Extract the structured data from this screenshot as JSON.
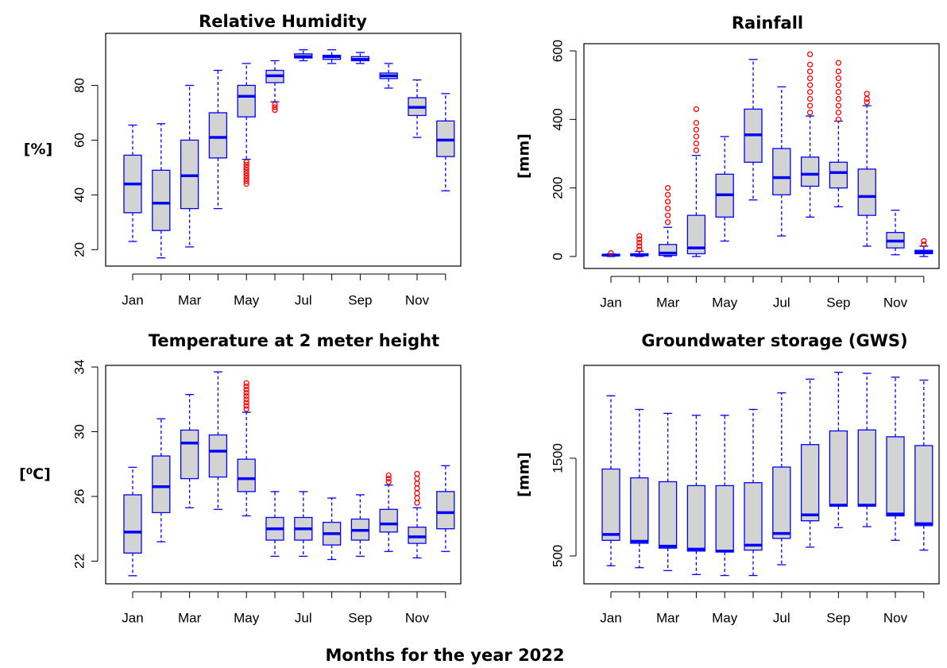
{
  "caption": "Months for the year 2022",
  "chart_data": [
    {
      "type": "box",
      "title": "Relative Humidity",
      "ylabel": "[%]",
      "categories": [
        "Jan",
        null,
        "Mar",
        null,
        "May",
        null,
        "Jul",
        null,
        "Sep",
        null,
        "Nov",
        null
      ],
      "color": "#0000ff",
      "fill": "#d3d3d3",
      "outlier_color": "#ff0000",
      "ylim": [
        14,
        99
      ],
      "yticks": [
        20,
        40,
        60,
        80
      ],
      "boxes": [
        {
          "min": 23,
          "q1": 33.5,
          "median": 44,
          "q3": 54.5,
          "max": 65.5,
          "outliers": []
        },
        {
          "min": 17,
          "q1": 27,
          "median": 37,
          "q3": 49,
          "max": 66,
          "outliers": []
        },
        {
          "min": 21,
          "q1": 35,
          "median": 47,
          "q3": 60,
          "max": 80,
          "outliers": []
        },
        {
          "min": 35,
          "q1": 53.5,
          "median": 61,
          "q3": 70,
          "max": 85.5,
          "outliers": []
        },
        {
          "min": 53,
          "q1": 68.5,
          "median": 76,
          "q3": 80,
          "max": 88,
          "outliers": [
            44,
            45,
            46,
            47,
            48,
            49,
            50,
            51,
            52
          ]
        },
        {
          "min": 74,
          "q1": 81,
          "median": 83.5,
          "q3": 85.5,
          "max": 89,
          "outliers": [
            71,
            72,
            73
          ]
        },
        {
          "min": 89,
          "q1": 90,
          "median": 90.5,
          "q3": 91.5,
          "max": 93,
          "outliers": []
        },
        {
          "min": 88,
          "q1": 89.5,
          "median": 90.5,
          "q3": 91,
          "max": 93,
          "outliers": []
        },
        {
          "min": 88,
          "q1": 89,
          "median": 89.5,
          "q3": 90.5,
          "max": 92,
          "outliers": []
        },
        {
          "min": 79,
          "q1": 82.5,
          "median": 83.5,
          "q3": 84.5,
          "max": 88,
          "outliers": []
        },
        {
          "min": 61,
          "q1": 69,
          "median": 72,
          "q3": 75.5,
          "max": 82,
          "outliers": []
        },
        {
          "min": 41.5,
          "q1": 54,
          "median": 60,
          "q3": 67,
          "max": 77,
          "outliers": []
        }
      ]
    },
    {
      "type": "box",
      "title": "Rainfall",
      "ylabel": "[mm]",
      "categories": [
        "Jan",
        null,
        "Mar",
        null,
        "May",
        null,
        "Jul",
        null,
        "Sep",
        null,
        "Nov",
        null
      ],
      "color": "#0000ff",
      "fill": "#d3d3d3",
      "outlier_color": "#ff0000",
      "ylim": [
        -35,
        621
      ],
      "yticks": [
        0,
        200,
        400,
        600
      ],
      "boxes": [
        {
          "min": 0,
          "q1": 2,
          "median": 4,
          "q3": 6,
          "max": 8,
          "outliers": [
            10
          ]
        },
        {
          "min": 0,
          "q1": 2,
          "median": 5,
          "q3": 8,
          "max": 15,
          "outliers": [
            20,
            30,
            40,
            50,
            60
          ]
        },
        {
          "min": 0,
          "q1": 3,
          "median": 10,
          "q3": 35,
          "max": 85,
          "outliers": [
            100,
            120,
            140,
            160,
            180,
            200
          ]
        },
        {
          "min": 0,
          "q1": 8,
          "median": 25,
          "q3": 120,
          "max": 295,
          "outliers": [
            310,
            330,
            350,
            370,
            390,
            430
          ]
        },
        {
          "min": 45,
          "q1": 115,
          "median": 180,
          "q3": 240,
          "max": 350,
          "outliers": []
        },
        {
          "min": 165,
          "q1": 275,
          "median": 355,
          "q3": 430,
          "max": 575,
          "outliers": []
        },
        {
          "min": 60,
          "q1": 180,
          "median": 230,
          "q3": 315,
          "max": 495,
          "outliers": []
        },
        {
          "min": 115,
          "q1": 205,
          "median": 240,
          "q3": 290,
          "max": 410,
          "outliers": [
            420,
            440,
            460,
            480,
            500,
            520,
            540,
            560,
            590
          ]
        },
        {
          "min": 145,
          "q1": 200,
          "median": 245,
          "q3": 275,
          "max": 395,
          "outliers": [
            400,
            420,
            440,
            460,
            480,
            500,
            520,
            540,
            565
          ]
        },
        {
          "min": 30,
          "q1": 120,
          "median": 175,
          "q3": 255,
          "max": 440,
          "outliers": [
            450,
            460,
            475
          ]
        },
        {
          "min": 5,
          "q1": 25,
          "median": 45,
          "q3": 70,
          "max": 135,
          "outliers": []
        },
        {
          "min": 0,
          "q1": 8,
          "median": 13,
          "q3": 18,
          "max": 30,
          "outliers": [
            35,
            45
          ]
        }
      ]
    },
    {
      "type": "box",
      "title": "Temperature at 2 meter height",
      "ylabel": "[⁰C]",
      "categories": [
        "Jan",
        null,
        "Mar",
        null,
        "May",
        null,
        "Jul",
        null,
        "Sep",
        null,
        "Nov",
        null
      ],
      "color": "#0000ff",
      "fill": "#d3d3d3",
      "outlier_color": "#ff0000",
      "ylim": [
        20.6,
        34.1
      ],
      "yticks": [
        22,
        26,
        30,
        34
      ],
      "boxes": [
        {
          "min": 21.1,
          "q1": 22.5,
          "median": 23.8,
          "q3": 26.1,
          "max": 27.8,
          "outliers": []
        },
        {
          "min": 23.2,
          "q1": 25,
          "median": 26.6,
          "q3": 28.5,
          "max": 30.8,
          "outliers": []
        },
        {
          "min": 25.3,
          "q1": 27.1,
          "median": 29.3,
          "q3": 30.1,
          "max": 32.3,
          "outliers": []
        },
        {
          "min": 25.2,
          "q1": 27.2,
          "median": 28.8,
          "q3": 29.8,
          "max": 33.7,
          "outliers": []
        },
        {
          "min": 24.8,
          "q1": 26.3,
          "median": 27.1,
          "q3": 28.3,
          "max": 31.2,
          "outliers": [
            31.4,
            31.6,
            31.8,
            32,
            32.2,
            32.4,
            32.6,
            32.8,
            33
          ]
        },
        {
          "min": 22.3,
          "q1": 23.3,
          "median": 24,
          "q3": 24.7,
          "max": 26.3,
          "outliers": []
        },
        {
          "min": 22.3,
          "q1": 23.3,
          "median": 24,
          "q3": 24.7,
          "max": 26.3,
          "outliers": []
        },
        {
          "min": 22.1,
          "q1": 23,
          "median": 23.7,
          "q3": 24.4,
          "max": 25.9,
          "outliers": []
        },
        {
          "min": 22.3,
          "q1": 23.3,
          "median": 23.9,
          "q3": 24.6,
          "max": 26.1,
          "outliers": []
        },
        {
          "min": 22.6,
          "q1": 23.8,
          "median": 24.3,
          "q3": 25.2,
          "max": 26.7,
          "outliers": [
            26.9,
            27.1,
            27.3
          ]
        },
        {
          "min": 22.2,
          "q1": 23.1,
          "median": 23.5,
          "q3": 24.1,
          "max": 25.3,
          "outliers": [
            25.6,
            25.9,
            26.2,
            26.5,
            26.8,
            27.1,
            27.4
          ]
        },
        {
          "min": 22.6,
          "q1": 24,
          "median": 25,
          "q3": 26.3,
          "max": 27.9,
          "outliers": []
        }
      ]
    },
    {
      "type": "box",
      "title": "Groundwater storage (GWS)",
      "ylabel": "[mm]",
      "categories": [
        "Jan",
        null,
        "Mar",
        null,
        "May",
        null,
        "Jul",
        null,
        "Sep",
        null,
        "Nov",
        null
      ],
      "color": "#0000ff",
      "fill": "#d3d3d3",
      "outlier_color": "#ff0000",
      "ylim": [
        215,
        2451
      ],
      "yticks": [
        500,
        1500
      ],
      "boxes": [
        {
          "min": 400,
          "q1": 660,
          "median": 720,
          "q3": 1390,
          "max": 2140,
          "outliers": []
        },
        {
          "min": 380,
          "q1": 630,
          "median": 650,
          "q3": 1300,
          "max": 2000,
          "outliers": []
        },
        {
          "min": 350,
          "q1": 580,
          "median": 600,
          "q3": 1260,
          "max": 1960,
          "outliers": []
        },
        {
          "min": 310,
          "q1": 550,
          "median": 570,
          "q3": 1220,
          "max": 1940,
          "outliers": []
        },
        {
          "min": 300,
          "q1": 540,
          "median": 550,
          "q3": 1220,
          "max": 1940,
          "outliers": []
        },
        {
          "min": 300,
          "q1": 560,
          "median": 610,
          "q3": 1250,
          "max": 2000,
          "outliers": []
        },
        {
          "min": 410,
          "q1": 680,
          "median": 730,
          "q3": 1410,
          "max": 2170,
          "outliers": []
        },
        {
          "min": 590,
          "q1": 860,
          "median": 920,
          "q3": 1640,
          "max": 2310,
          "outliers": []
        },
        {
          "min": 790,
          "q1": 1010,
          "median": 1020,
          "q3": 1780,
          "max": 2380,
          "outliers": []
        },
        {
          "min": 800,
          "q1": 1010,
          "median": 1020,
          "q3": 1790,
          "max": 2370,
          "outliers": []
        },
        {
          "min": 660,
          "q1": 910,
          "median": 930,
          "q3": 1720,
          "max": 2330,
          "outliers": []
        },
        {
          "min": 560,
          "q1": 810,
          "median": 830,
          "q3": 1630,
          "max": 2300,
          "outliers": []
        }
      ]
    }
  ]
}
